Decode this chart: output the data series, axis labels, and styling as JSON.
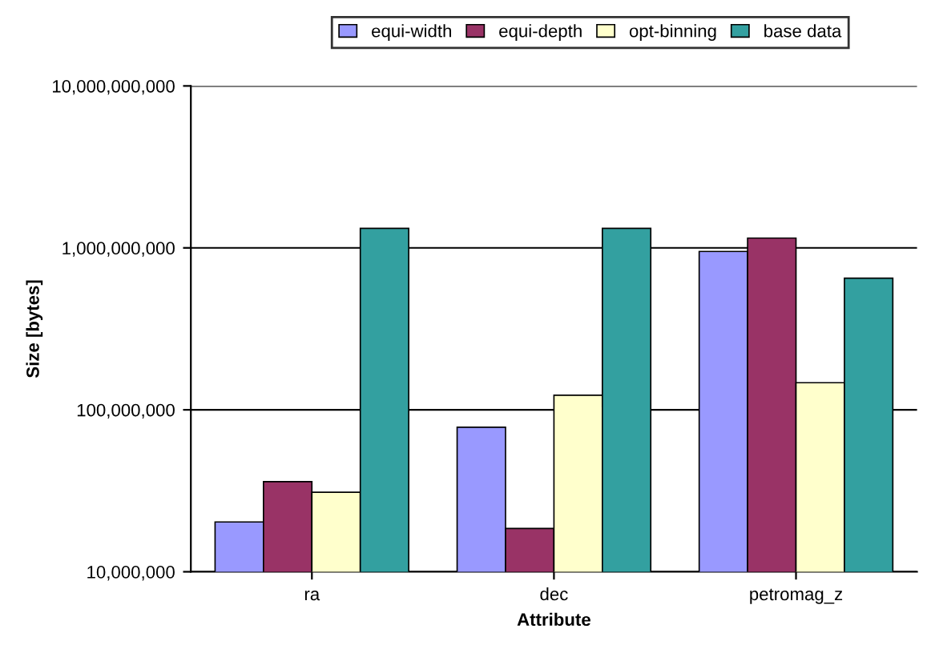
{
  "chart_data": {
    "type": "bar",
    "xlabel": "Attribute",
    "ylabel": "Size [bytes]",
    "categories": [
      "ra",
      "dec",
      "petromag_z"
    ],
    "series": [
      {
        "name": "equi-width",
        "color": "#9999ff",
        "values": [
          20300000,
          78000000,
          950000000
        ]
      },
      {
        "name": "equi-depth",
        "color": "#993366",
        "values": [
          36000000,
          18500000,
          1150000000
        ]
      },
      {
        "name": "opt-binning",
        "color": "#ffffcc",
        "values": [
          31000000,
          123000000,
          147000000
        ]
      },
      {
        "name": "base data",
        "color": "#33a0a0",
        "values": [
          1320000000,
          1320000000,
          650000000
        ]
      }
    ],
    "log": "y",
    "ylim": [
      10000000,
      10000000000
    ],
    "yticks": [
      {
        "value": 10000000,
        "label": "10,000,000"
      },
      {
        "value": 100000000,
        "label": "100,000,000"
      },
      {
        "value": 1000000000,
        "label": "1,000,000,000"
      },
      {
        "value": 10000000000,
        "label": "10,000,000,000"
      }
    ],
    "grid": "y",
    "legend": "top"
  }
}
